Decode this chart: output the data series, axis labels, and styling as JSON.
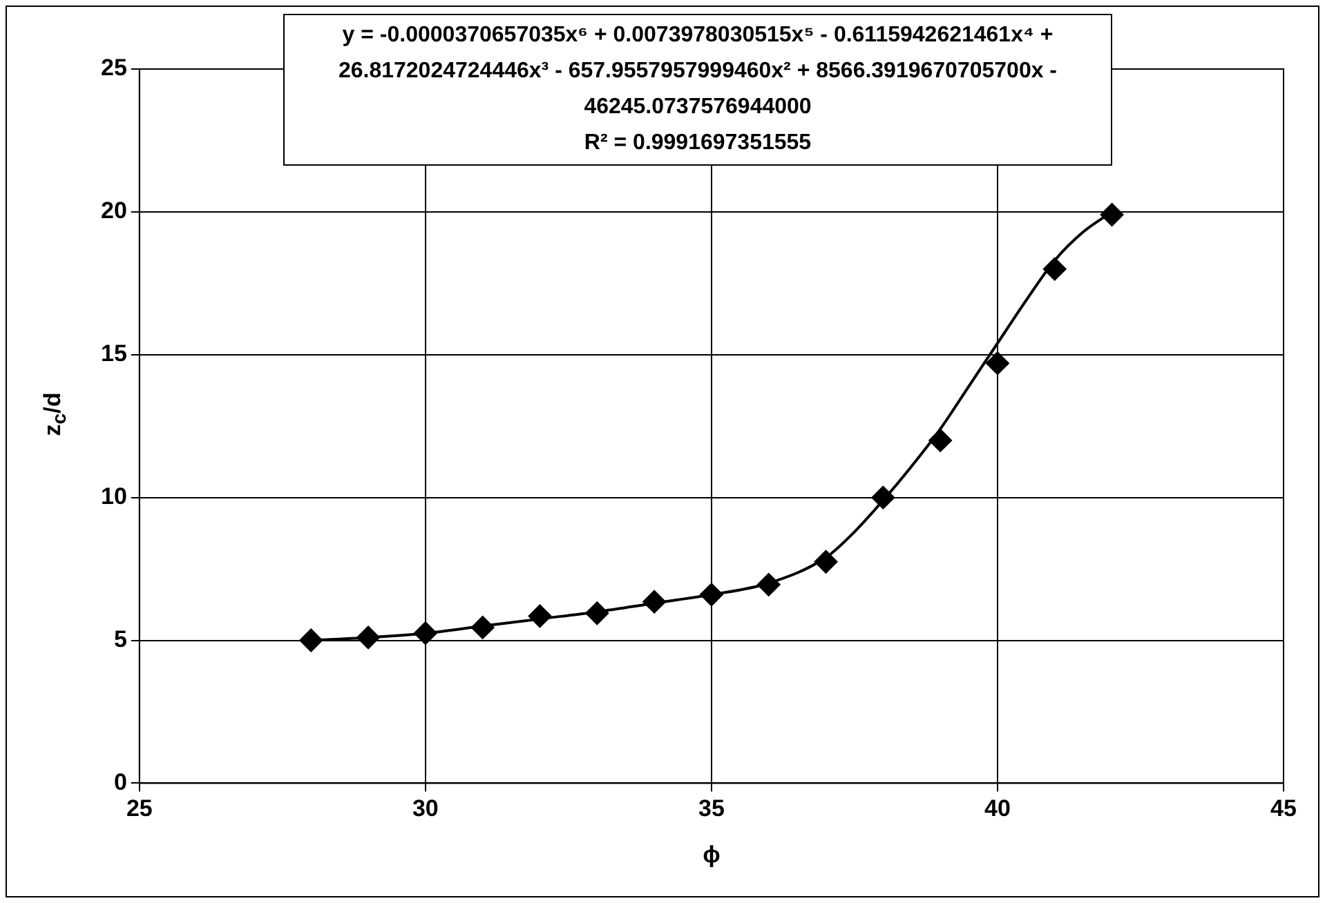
{
  "chart_data": {
    "type": "scatter",
    "xlabel": "ϕ",
    "ylabel": "z$_{c}$/d",
    "xlim": [
      25,
      45
    ],
    "xticks": [
      25,
      30,
      35,
      40,
      45
    ],
    "ylim": [
      0,
      25
    ],
    "yticks": [
      0,
      5,
      10,
      15,
      20,
      25
    ],
    "grid": true,
    "legend": false,
    "marker": "diamond",
    "annotations": [
      "y = -0.0000370657035x⁶ + 0.0073978030515x⁵ - 0.6115942621461x⁴ + 26.8172024724446x³ - 657.9557957999460x² + 8566.3919670705700x - 46245.0737576944000",
      "R² = 0.9991697351555"
    ],
    "series": [
      {
        "color": "#000000",
        "x": [
          28,
          29,
          30,
          31,
          32,
          33,
          34,
          35,
          36,
          37,
          38,
          39,
          40,
          41,
          42
        ],
        "values": [
          5.0,
          5.1,
          5.25,
          5.45,
          5.85,
          5.95,
          6.35,
          6.6,
          6.95,
          7.75,
          10.0,
          12.0,
          14.7,
          18.0,
          19.9
        ]
      },
      {
        "type": "line",
        "color": "#000000",
        "marker": "none",
        "x": [
          28,
          29,
          30,
          31,
          32,
          33,
          34,
          35,
          36,
          37,
          37.5,
          38,
          38.5,
          39,
          39.5,
          40,
          40.5,
          41,
          41.5,
          42
        ],
        "values": [
          5.0,
          5.1,
          5.25,
          5.5,
          5.75,
          6.0,
          6.3,
          6.6,
          7.0,
          7.9,
          8.8,
          9.9,
          11.1,
          12.4,
          13.9,
          15.4,
          16.9,
          18.3,
          19.3,
          20.0
        ]
      }
    ]
  }
}
